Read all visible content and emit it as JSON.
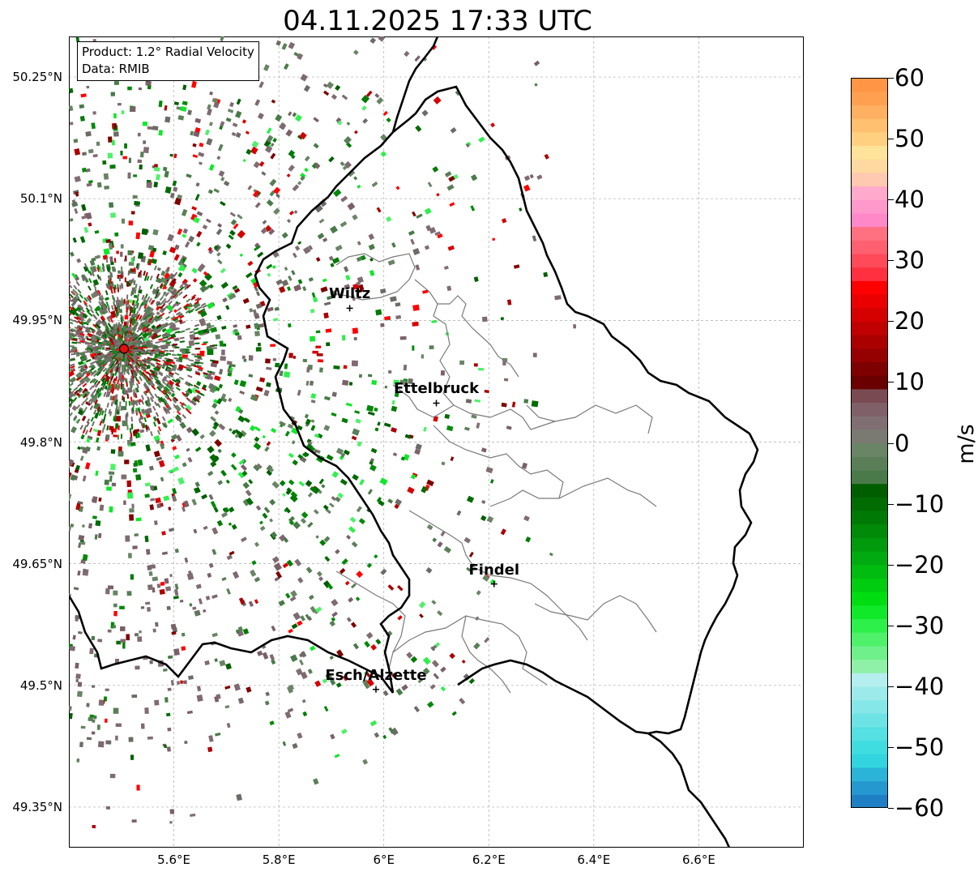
{
  "title": "04.11.2025 17:33 UTC",
  "info": {
    "product": "Product: 1.2° Radial Velocity",
    "data": "Data: RMIB"
  },
  "map": {
    "lon_range": [
      5.4,
      6.8
    ],
    "lat_range": [
      49.3,
      50.3
    ],
    "lat_ticks": [
      {
        "value": 50.25,
        "label": "50.25°N"
      },
      {
        "value": 50.1,
        "label": "50.1°N"
      },
      {
        "value": 49.95,
        "label": "49.95°N"
      },
      {
        "value": 49.8,
        "label": "49.8°N"
      },
      {
        "value": 49.65,
        "label": "49.65°N"
      },
      {
        "value": 49.5,
        "label": "49.5°N"
      },
      {
        "value": 49.35,
        "label": "49.35°N"
      }
    ],
    "lon_ticks": [
      {
        "value": 5.6,
        "label": "5.6°E"
      },
      {
        "value": 5.8,
        "label": "5.8°E"
      },
      {
        "value": 6.0,
        "label": "6°E"
      },
      {
        "value": 6.2,
        "label": "6.2°E"
      },
      {
        "value": 6.4,
        "label": "6.4°E"
      },
      {
        "value": 6.6,
        "label": "6.6°E"
      }
    ],
    "radar_site": {
      "lon": 5.505,
      "lat": 49.915
    },
    "cities": [
      {
        "name": "Wiltz",
        "lon": 5.935,
        "lat": 49.965
      },
      {
        "name": "Ettelbruck",
        "lon": 6.1,
        "lat": 49.848
      },
      {
        "name": "Findel",
        "lon": 6.21,
        "lat": 49.625
      },
      {
        "name": "Esch/Alzette",
        "lon": 5.985,
        "lat": 49.495
      }
    ]
  },
  "colorbar": {
    "label": "m/s",
    "min": -60,
    "max": 60,
    "ticks": [
      {
        "value": 60,
        "label": "60"
      },
      {
        "value": 50,
        "label": "50"
      },
      {
        "value": 40,
        "label": "40"
      },
      {
        "value": 30,
        "label": "30"
      },
      {
        "value": 20,
        "label": "20"
      },
      {
        "value": 10,
        "label": "10"
      },
      {
        "value": 0,
        "label": "0"
      },
      {
        "value": -10,
        "label": "−10"
      },
      {
        "value": -20,
        "label": "−20"
      },
      {
        "value": -30,
        "label": "−30"
      },
      {
        "value": -40,
        "label": "−40"
      },
      {
        "value": -50,
        "label": "−50"
      },
      {
        "value": -60,
        "label": "−60"
      }
    ],
    "colors": [
      "#1f7fc4",
      "#2598cf",
      "#2bb3d8",
      "#31d4df",
      "#40dde0",
      "#55e0e2",
      "#6ee3e5",
      "#85e7e8",
      "#9deaeb",
      "#b5eeee",
      "#8ff0a8",
      "#6ff08a",
      "#4ff06a",
      "#2df04a",
      "#10e82a",
      "#00dd10",
      "#00cc10",
      "#00bb10",
      "#00aa10",
      "#009a0c",
      "#008a08",
      "#007a05",
      "#006c02",
      "#005e00",
      "#4a7a4a",
      "#5a7f58",
      "#6a8466",
      "#7a7a72",
      "#7f6f72",
      "#7f6068",
      "#7a4a52",
      "#6a0000",
      "#7f0000",
      "#950000",
      "#aa0000",
      "#c00000",
      "#d50000",
      "#ea0000",
      "#ff0000",
      "#ff3040",
      "#ff4a5a",
      "#ff6070",
      "#ff7080",
      "#ff88c8",
      "#ff99cc",
      "#ffaacc",
      "#ffc8b0",
      "#ffd9a0",
      "#ffe39a",
      "#ffd080",
      "#ffc070",
      "#ffb060",
      "#ffa050",
      "#ff9545"
    ]
  }
}
